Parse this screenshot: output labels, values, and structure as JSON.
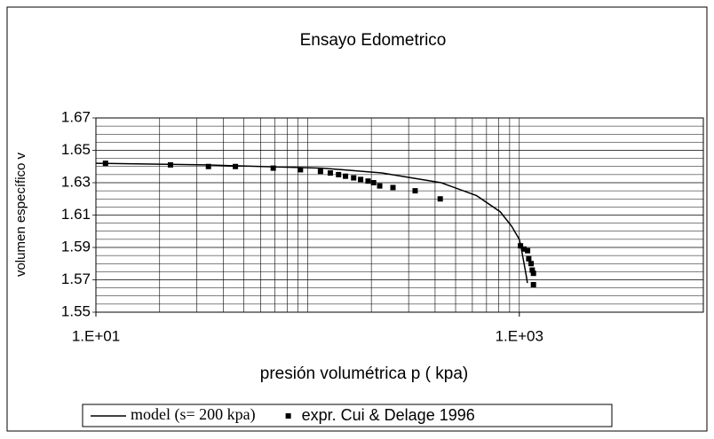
{
  "chart_data": {
    "type": "scatter-line",
    "title": "Ensayo Edometrico",
    "x_label": "presión volumétrica p ( kpa)",
    "y_label": "volumen específico  v",
    "xscale": "log",
    "xlim": [
      10,
      7400
    ],
    "ylim": [
      1.55,
      1.67
    ],
    "xticks": [
      {
        "value": 10,
        "label": "1.E+01"
      },
      {
        "value": 1000,
        "label": "1.E+03"
      }
    ],
    "yticks": [
      1.55,
      1.57,
      1.59,
      1.61,
      1.63,
      1.65,
      1.67
    ],
    "xgrid": [
      20,
      30,
      40,
      50,
      60,
      70,
      80,
      90,
      100,
      200,
      300,
      400,
      500,
      600,
      700,
      800,
      900,
      1000
    ],
    "ygrid": [
      1.555,
      1.56,
      1.565,
      1.575,
      1.58,
      1.585,
      1.595,
      1.6,
      1.605,
      1.615,
      1.62,
      1.625,
      1.635,
      1.64,
      1.645,
      1.655,
      1.66,
      1.665
    ],
    "legend": "bottom",
    "series": [
      {
        "name": "model (s= 200 kpa)",
        "kind": "line",
        "color": "#000000",
        "x": [
          10,
          32.7,
          118,
          224,
          427,
          628,
          813,
          921,
          1000,
          1026,
          1053,
          1080,
          1092
        ],
        "values": [
          1.642,
          1.641,
          1.639,
          1.636,
          1.63,
          1.622,
          1.612,
          1.603,
          1.595,
          1.588,
          1.58,
          1.572,
          1.568
        ]
      },
      {
        "name": "expr. Cui & Delage 1996",
        "kind": "scatter",
        "color": "#000000",
        "x": [
          11.1,
          22.5,
          34,
          45.6,
          68.8,
          92.5,
          115,
          128,
          140,
          151,
          165,
          178,
          193,
          205,
          219,
          253,
          322,
          423,
          1013,
          1052,
          1094,
          1108,
          1137,
          1151,
          1166,
          1166
        ],
        "values": [
          1.642,
          1.641,
          1.64,
          1.64,
          1.639,
          1.638,
          1.637,
          1.636,
          1.635,
          1.634,
          1.633,
          1.632,
          1.631,
          1.63,
          1.628,
          1.627,
          1.625,
          1.62,
          1.591,
          1.589,
          1.588,
          1.583,
          1.58,
          1.576,
          1.574,
          1.567
        ]
      }
    ]
  }
}
